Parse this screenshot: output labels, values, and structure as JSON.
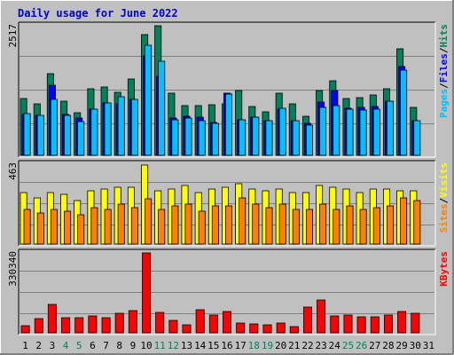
{
  "chart_data": {
    "type": "bar",
    "title": "Daily usage for June 2022",
    "days": [
      "1",
      "2",
      "3",
      "4",
      "5",
      "6",
      "7",
      "8",
      "9",
      "10",
      "11",
      "12",
      "13",
      "14",
      "15",
      "16",
      "17",
      "18",
      "19",
      "20",
      "21",
      "22",
      "23",
      "24",
      "25",
      "26",
      "27",
      "28",
      "29",
      "30",
      "31"
    ],
    "weekend_days": [
      4,
      5,
      11,
      12,
      18,
      19,
      25,
      26
    ],
    "colors": {
      "hits": "#00805C",
      "files": "#0000FF",
      "pages": "#00C0FF",
      "visits": "#FFFF00",
      "sites": "#FF8000",
      "kbytes": "#FF0000",
      "panel_bg": "#C0C0C0",
      "day_normal": "#000000",
      "day_weekend": "#00805C",
      "title": "#0000CC"
    },
    "panels": [
      {
        "id": "hits-files-pages",
        "max_label": "2517",
        "max": 2517,
        "legend": [
          {
            "text": "Pages",
            "color": "#00C0FF"
          },
          {
            "text": "/",
            "color": "#000000"
          },
          {
            "text": "Files",
            "color": "#0000FF"
          },
          {
            "text": "/",
            "color": "#000000"
          },
          {
            "text": "Hits",
            "color": "#00805C"
          }
        ],
        "series": [
          {
            "name": "Hits",
            "color": "#00805C",
            "values": [
              1100,
              1000,
              1580,
              1060,
              830,
              1300,
              1320,
              1220,
              1480,
              2340,
              2517,
              1200,
              960,
              960,
              990,
              1000,
              1260,
              950,
              850,
              1200,
              1000,
              750,
              1250,
              1450,
              1100,
              1120,
              1180,
              1300,
              2070,
              930,
              0
            ]
          },
          {
            "name": "Files",
            "color": "#0000FF",
            "values": [
              800,
              770,
              1360,
              790,
              730,
              890,
              1010,
              1000,
              1090,
              1930,
              1530,
              730,
              750,
              740,
              640,
              1200,
              690,
              740,
              680,
              900,
              680,
              620,
              1040,
              1250,
              920,
              930,
              940,
              1050,
              1730,
              680,
              0
            ]
          },
          {
            "name": "Pages",
            "color": "#00C0FF",
            "values": [
              810,
              770,
              1090,
              780,
              650,
              900,
              1020,
              1140,
              1090,
              2140,
              1820,
              690,
              720,
              680,
              620,
              1190,
              690,
              740,
              680,
              920,
              680,
              590,
              930,
              970,
              900,
              880,
              890,
              1050,
              1650,
              670,
              0
            ]
          }
        ]
      },
      {
        "id": "visits-sites",
        "max_label": "463",
        "max": 463,
        "legend": [
          {
            "text": "Sites",
            "color": "#FF8000"
          },
          {
            "text": "/",
            "color": "#000000"
          },
          {
            "text": "Visits",
            "color": "#FFFF00"
          }
        ],
        "series": [
          {
            "name": "Visits",
            "color": "#FFFF00",
            "values": [
              300,
              270,
              300,
              290,
              250,
              310,
              320,
              330,
              330,
              460,
              310,
              320,
              340,
              300,
              320,
              330,
              350,
              320,
              310,
              320,
              300,
              300,
              340,
              330,
              320,
              300,
              320,
              320,
              310,
              310,
              0
            ]
          },
          {
            "name": "Sites",
            "color": "#FF8000",
            "values": [
              200,
              180,
              200,
              190,
              170,
              210,
              200,
              230,
              210,
              260,
              200,
              220,
              230,
              190,
              220,
              220,
              270,
              230,
              210,
              230,
              200,
              200,
              230,
              200,
              220,
              200,
              210,
              220,
              270,
              250,
              0
            ]
          }
        ]
      },
      {
        "id": "kbytes",
        "max_label": "330340",
        "max": 330340,
        "legend": [
          {
            "text": "KBytes",
            "color": "#FF0000"
          }
        ],
        "series": [
          {
            "name": "KBytes",
            "color": "#FF0000",
            "values": [
              30000,
              60000,
              116000,
              62000,
              64000,
              71000,
              63000,
              82000,
              93000,
              330340,
              86000,
              50000,
              34000,
              97000,
              72000,
              87000,
              42000,
              35000,
              33000,
              40000,
              25000,
              107000,
              136000,
              71000,
              72000,
              67000,
              65000,
              75000,
              89000,
              79000,
              0
            ]
          }
        ]
      }
    ]
  }
}
